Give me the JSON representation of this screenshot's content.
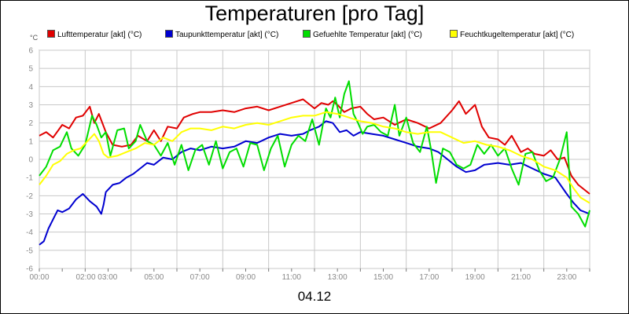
{
  "chart_data": {
    "type": "line",
    "title": "Temperaturen [pro Tag]",
    "ylabel": "°C",
    "xlabel": "04.12",
    "ylim": [
      -6,
      6
    ],
    "yticks": [
      6,
      5,
      4,
      3,
      2,
      1,
      0,
      -1,
      -2,
      -3,
      -4,
      -5,
      -6
    ],
    "xlim_hours": [
      0,
      24
    ],
    "xticks": [
      {
        "h": 0,
        "label": "00:00"
      },
      {
        "h": 2.5,
        "label": "02:00 03:00"
      },
      {
        "h": 5,
        "label": "05:00"
      },
      {
        "h": 7,
        "label": "07:00"
      },
      {
        "h": 9,
        "label": "09:00"
      },
      {
        "h": 11,
        "label": "11:00"
      },
      {
        "h": 13,
        "label": "13:00"
      },
      {
        "h": 15,
        "label": "15:00"
      },
      {
        "h": 17,
        "label": "17:00"
      },
      {
        "h": 19,
        "label": "19:00"
      },
      {
        "h": 21,
        "label": "21:00"
      },
      {
        "h": 23,
        "label": "23:00"
      }
    ],
    "grid": true,
    "legend_position": "top",
    "series": [
      {
        "name": "Lufttemperatur [akt] (°C)",
        "color": "#e00000",
        "points": [
          [
            0,
            1.3
          ],
          [
            0.3,
            1.5
          ],
          [
            0.6,
            1.2
          ],
          [
            1,
            1.9
          ],
          [
            1.3,
            1.7
          ],
          [
            1.6,
            2.3
          ],
          [
            1.9,
            2.4
          ],
          [
            2.2,
            2.9
          ],
          [
            2.4,
            2.0
          ],
          [
            2.6,
            2.5
          ],
          [
            2.9,
            1.5
          ],
          [
            3.2,
            0.8
          ],
          [
            3.6,
            0.7
          ],
          [
            4,
            0.8
          ],
          [
            4.3,
            1.3
          ],
          [
            4.7,
            1.0
          ],
          [
            5,
            1.6
          ],
          [
            5.3,
            1.0
          ],
          [
            5.6,
            1.8
          ],
          [
            6,
            1.7
          ],
          [
            6.3,
            2.3
          ],
          [
            6.7,
            2.5
          ],
          [
            7,
            2.6
          ],
          [
            7.5,
            2.6
          ],
          [
            8,
            2.7
          ],
          [
            8.5,
            2.6
          ],
          [
            9,
            2.8
          ],
          [
            9.5,
            2.9
          ],
          [
            10,
            2.7
          ],
          [
            10.5,
            2.9
          ],
          [
            11,
            3.1
          ],
          [
            11.5,
            3.3
          ],
          [
            11.8,
            3.0
          ],
          [
            12,
            2.8
          ],
          [
            12.3,
            3.1
          ],
          [
            12.6,
            3.0
          ],
          [
            12.8,
            3.2
          ],
          [
            13,
            3.0
          ],
          [
            13.3,
            2.6
          ],
          [
            13.6,
            2.8
          ],
          [
            14,
            2.9
          ],
          [
            14.3,
            2.5
          ],
          [
            14.6,
            2.2
          ],
          [
            15,
            2.3
          ],
          [
            15.5,
            1.9
          ],
          [
            16,
            2.2
          ],
          [
            16.5,
            2.0
          ],
          [
            17,
            1.7
          ],
          [
            17.5,
            2.0
          ],
          [
            18,
            2.7
          ],
          [
            18.3,
            3.2
          ],
          [
            18.6,
            2.5
          ],
          [
            19,
            3.0
          ],
          [
            19.3,
            1.8
          ],
          [
            19.6,
            1.2
          ],
          [
            20,
            1.1
          ],
          [
            20.3,
            0.8
          ],
          [
            20.6,
            1.3
          ],
          [
            21,
            0.4
          ],
          [
            21.3,
            0.6
          ],
          [
            21.6,
            0.3
          ],
          [
            22,
            0.2
          ],
          [
            22.3,
            0.5
          ],
          [
            22.6,
            0.0
          ],
          [
            22.9,
            0.1
          ],
          [
            23.2,
            -0.9
          ],
          [
            23.5,
            -1.4
          ],
          [
            23.8,
            -1.7
          ],
          [
            24,
            -1.9
          ]
        ]
      },
      {
        "name": "Taupunkttemperatur [akt] (°C)",
        "color": "#0000d0",
        "points": [
          [
            0,
            -4.7
          ],
          [
            0.2,
            -4.5
          ],
          [
            0.4,
            -3.8
          ],
          [
            0.6,
            -3.3
          ],
          [
            0.8,
            -2.8
          ],
          [
            1,
            -2.9
          ],
          [
            1.3,
            -2.7
          ],
          [
            1.6,
            -2.2
          ],
          [
            1.9,
            -1.9
          ],
          [
            2.2,
            -2.3
          ],
          [
            2.5,
            -2.6
          ],
          [
            2.7,
            -3.0
          ],
          [
            2.8,
            -2.5
          ],
          [
            2.9,
            -1.8
          ],
          [
            3.2,
            -1.4
          ],
          [
            3.5,
            -1.3
          ],
          [
            3.8,
            -1.0
          ],
          [
            4.1,
            -0.8
          ],
          [
            4.4,
            -0.5
          ],
          [
            4.7,
            -0.2
          ],
          [
            5,
            -0.3
          ],
          [
            5.4,
            0.1
          ],
          [
            5.8,
            0.0
          ],
          [
            6.2,
            0.4
          ],
          [
            6.6,
            0.6
          ],
          [
            7,
            0.5
          ],
          [
            7.5,
            0.7
          ],
          [
            8,
            0.6
          ],
          [
            8.5,
            0.7
          ],
          [
            9,
            1.0
          ],
          [
            9.5,
            0.9
          ],
          [
            10,
            1.2
          ],
          [
            10.5,
            1.4
          ],
          [
            11,
            1.3
          ],
          [
            11.5,
            1.4
          ],
          [
            11.8,
            1.6
          ],
          [
            12.2,
            1.8
          ],
          [
            12.5,
            2.1
          ],
          [
            12.8,
            2.0
          ],
          [
            13.1,
            1.5
          ],
          [
            13.4,
            1.6
          ],
          [
            13.7,
            1.3
          ],
          [
            14,
            1.5
          ],
          [
            14.5,
            1.4
          ],
          [
            15,
            1.3
          ],
          [
            15.5,
            1.1
          ],
          [
            16,
            0.9
          ],
          [
            16.5,
            0.7
          ],
          [
            17,
            0.6
          ],
          [
            17.4,
            0.4
          ],
          [
            17.8,
            0.0
          ],
          [
            18.2,
            -0.4
          ],
          [
            18.6,
            -0.7
          ],
          [
            19,
            -0.6
          ],
          [
            19.4,
            -0.3
          ],
          [
            20,
            -0.2
          ],
          [
            20.5,
            -0.3
          ],
          [
            21,
            -0.2
          ],
          [
            21.5,
            -0.5
          ],
          [
            22,
            -0.8
          ],
          [
            22.5,
            -1.0
          ],
          [
            23,
            -1.9
          ],
          [
            23.3,
            -2.4
          ],
          [
            23.6,
            -2.8
          ],
          [
            24,
            -3.0
          ]
        ]
      },
      {
        "name": "Gefuehlte Temperatur [akt] (°C)",
        "color": "#00dd00",
        "points": [
          [
            0,
            -0.9
          ],
          [
            0.3,
            -0.4
          ],
          [
            0.6,
            0.5
          ],
          [
            0.9,
            0.7
          ],
          [
            1.2,
            1.5
          ],
          [
            1.4,
            0.6
          ],
          [
            1.7,
            0.2
          ],
          [
            2,
            0.8
          ],
          [
            2.3,
            2.4
          ],
          [
            2.5,
            1.9
          ],
          [
            2.7,
            1.2
          ],
          [
            2.9,
            1.5
          ],
          [
            3.1,
            0.2
          ],
          [
            3.4,
            1.6
          ],
          [
            3.7,
            1.7
          ],
          [
            3.9,
            0.6
          ],
          [
            4.2,
            1.0
          ],
          [
            4.4,
            1.9
          ],
          [
            4.7,
            1.0
          ],
          [
            5,
            0.8
          ],
          [
            5.3,
            0.2
          ],
          [
            5.6,
            0.9
          ],
          [
            5.9,
            -0.3
          ],
          [
            6.2,
            0.8
          ],
          [
            6.5,
            -0.6
          ],
          [
            6.8,
            0.5
          ],
          [
            7.1,
            0.8
          ],
          [
            7.4,
            -0.3
          ],
          [
            7.7,
            1.0
          ],
          [
            8,
            -0.5
          ],
          [
            8.3,
            0.4
          ],
          [
            8.6,
            0.6
          ],
          [
            8.9,
            -0.4
          ],
          [
            9.2,
            0.9
          ],
          [
            9.5,
            0.8
          ],
          [
            9.8,
            -0.6
          ],
          [
            10.1,
            0.6
          ],
          [
            10.4,
            1.3
          ],
          [
            10.7,
            -0.4
          ],
          [
            11,
            0.8
          ],
          [
            11.3,
            1.3
          ],
          [
            11.6,
            1.0
          ],
          [
            11.9,
            2.2
          ],
          [
            12.2,
            0.8
          ],
          [
            12.5,
            2.8
          ],
          [
            12.7,
            2.3
          ],
          [
            12.9,
            3.4
          ],
          [
            13.1,
            2.3
          ],
          [
            13.3,
            3.6
          ],
          [
            13.5,
            4.3
          ],
          [
            13.7,
            2.5
          ],
          [
            13.9,
            2.0
          ],
          [
            14.1,
            1.4
          ],
          [
            14.3,
            1.8
          ],
          [
            14.6,
            1.9
          ],
          [
            14.9,
            1.5
          ],
          [
            15.2,
            1.3
          ],
          [
            15.5,
            3.0
          ],
          [
            15.7,
            1.3
          ],
          [
            16,
            2.3
          ],
          [
            16.3,
            0.9
          ],
          [
            16.6,
            0.4
          ],
          [
            16.9,
            1.8
          ],
          [
            17.1,
            0.4
          ],
          [
            17.3,
            -1.3
          ],
          [
            17.6,
            0.6
          ],
          [
            17.9,
            0.4
          ],
          [
            18.2,
            -0.3
          ],
          [
            18.5,
            -0.5
          ],
          [
            18.8,
            -0.3
          ],
          [
            19.1,
            0.8
          ],
          [
            19.4,
            0.3
          ],
          [
            19.7,
            0.8
          ],
          [
            20,
            0.2
          ],
          [
            20.3,
            0.6
          ],
          [
            20.6,
            -0.5
          ],
          [
            20.9,
            -1.4
          ],
          [
            21.2,
            0.3
          ],
          [
            21.5,
            0.4
          ],
          [
            21.8,
            -0.6
          ],
          [
            22.1,
            -1.2
          ],
          [
            22.4,
            -1.0
          ],
          [
            22.7,
            0.0
          ],
          [
            23,
            1.5
          ],
          [
            23.2,
            -2.6
          ],
          [
            23.5,
            -3.0
          ],
          [
            23.8,
            -3.7
          ],
          [
            24,
            -2.8
          ]
        ]
      },
      {
        "name": "Feuchtkugeltemperatur [akt] (°C)",
        "color": "#ffff00",
        "points": [
          [
            0,
            -1.4
          ],
          [
            0.3,
            -0.9
          ],
          [
            0.6,
            -0.3
          ],
          [
            0.9,
            -0.1
          ],
          [
            1.2,
            0.3
          ],
          [
            1.5,
            0.5
          ],
          [
            1.8,
            0.6
          ],
          [
            2.1,
            1.0
          ],
          [
            2.4,
            1.4
          ],
          [
            2.6,
            1.0
          ],
          [
            2.8,
            0.3
          ],
          [
            3,
            0.1
          ],
          [
            3.4,
            0.2
          ],
          [
            3.8,
            0.4
          ],
          [
            4.2,
            0.6
          ],
          [
            4.6,
            0.9
          ],
          [
            5,
            0.8
          ],
          [
            5.4,
            1.2
          ],
          [
            5.8,
            1.0
          ],
          [
            6.2,
            1.5
          ],
          [
            6.6,
            1.7
          ],
          [
            7,
            1.7
          ],
          [
            7.5,
            1.6
          ],
          [
            8,
            1.8
          ],
          [
            8.5,
            1.7
          ],
          [
            9,
            1.9
          ],
          [
            9.5,
            2.0
          ],
          [
            10,
            1.9
          ],
          [
            10.5,
            2.1
          ],
          [
            11,
            2.3
          ],
          [
            11.5,
            2.4
          ],
          [
            12,
            2.4
          ],
          [
            12.5,
            2.6
          ],
          [
            13,
            2.5
          ],
          [
            13.5,
            2.3
          ],
          [
            14,
            2.1
          ],
          [
            14.5,
            2.0
          ],
          [
            15,
            1.8
          ],
          [
            15.5,
            1.7
          ],
          [
            16,
            1.5
          ],
          [
            16.5,
            1.4
          ],
          [
            17,
            1.5
          ],
          [
            17.5,
            1.5
          ],
          [
            18,
            1.2
          ],
          [
            18.5,
            0.9
          ],
          [
            19,
            1.0
          ],
          [
            19.5,
            0.8
          ],
          [
            20,
            0.7
          ],
          [
            20.5,
            0.5
          ],
          [
            21,
            0.2
          ],
          [
            21.5,
            0.0
          ],
          [
            22,
            -0.4
          ],
          [
            22.5,
            -0.6
          ],
          [
            23,
            -1.0
          ],
          [
            23.3,
            -1.6
          ],
          [
            23.6,
            -2.1
          ],
          [
            24,
            -2.4
          ]
        ]
      }
    ]
  }
}
